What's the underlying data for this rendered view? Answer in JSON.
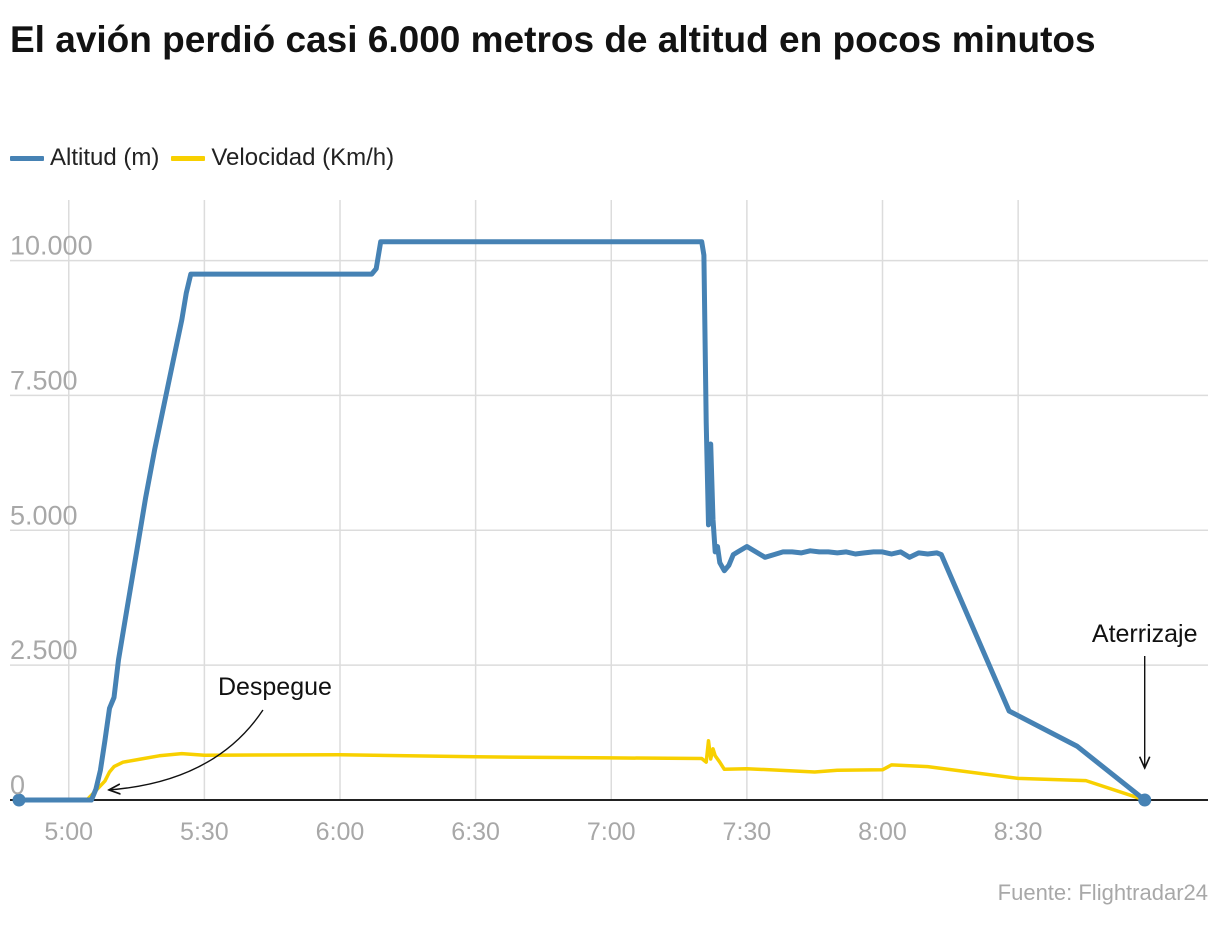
{
  "chart_data": {
    "type": "line",
    "title": "El avión perdió casi 6.000 metros de altitud en pocos minutos",
    "source": "Fuente: Flightradar24",
    "xlabel": "",
    "ylabel": "",
    "x_unit": "hora",
    "xlim": [
      "4:47",
      "9:12"
    ],
    "ylim": [
      0,
      10400
    ],
    "grid": true,
    "legend_position": "top-left",
    "x_ticks": [
      "5:00",
      "5:30",
      "6:00",
      "6:30",
      "7:00",
      "7:30",
      "8:00",
      "8:30"
    ],
    "y_ticks": [
      {
        "value": 0,
        "label": "0"
      },
      {
        "value": 2500,
        "label": "2.500"
      },
      {
        "value": 5000,
        "label": "5.000"
      },
      {
        "value": 7500,
        "label": "7.500"
      },
      {
        "value": 10000,
        "label": "10.000"
      }
    ],
    "series": [
      {
        "name": "Altitud (m)",
        "color": "#4682b4",
        "x": [
          "4:49",
          "5:05",
          "5:06",
          "5:07",
          "5:08",
          "5:09",
          "5:10",
          "5:11",
          "5:13",
          "5:15",
          "5:17",
          "5:19",
          "5:21",
          "5:23",
          "5:25",
          "5:26",
          "5:27",
          "6:07",
          "6:08",
          "6:09",
          "7:20",
          "7:20.5",
          "7:21",
          "7:21.5",
          "7:22",
          "7:22.5",
          "7:23",
          "7:23.5",
          "7:24",
          "7:25",
          "7:26",
          "7:27",
          "7:28",
          "7:30",
          "7:32",
          "7:34",
          "7:36",
          "7:38",
          "7:40",
          "7:42",
          "7:44",
          "7:46",
          "7:48",
          "7:50",
          "7:52",
          "7:54",
          "7:56",
          "7:58",
          "8:00",
          "8:02",
          "8:04",
          "8:06",
          "8:08",
          "8:10",
          "8:12",
          "8:13",
          "8:28",
          "8:43",
          "8:58"
        ],
        "values": [
          0,
          0,
          200,
          550,
          1100,
          1700,
          1900,
          2600,
          3600,
          4600,
          5600,
          6500,
          7300,
          8100,
          8900,
          9400,
          9750,
          9750,
          9850,
          10350,
          10350,
          10100,
          7000,
          5100,
          6600,
          5200,
          4600,
          4700,
          4400,
          4250,
          4350,
          4550,
          4600,
          4700,
          4600,
          4500,
          4550,
          4600,
          4600,
          4580,
          4620,
          4600,
          4600,
          4580,
          4600,
          4560,
          4580,
          4600,
          4600,
          4560,
          4600,
          4500,
          4580,
          4560,
          4580,
          4550,
          1650,
          1000,
          0
        ]
      },
      {
        "name": "Velocidad (Km/h)",
        "color": "#f8d000",
        "x": [
          "5:04",
          "5:08",
          "5:09",
          "5:10",
          "5:12",
          "5:16",
          "5:20",
          "5:25",
          "5:30",
          "6:00",
          "6:30",
          "7:00",
          "7:20",
          "7:21",
          "7:21.5",
          "7:22",
          "7:22.5",
          "7:23",
          "7:24",
          "7:25",
          "7:30",
          "7:40",
          "7:45",
          "7:50",
          "8:00",
          "8:02",
          "8:10",
          "8:30",
          "8:45",
          "8:58"
        ],
        "values": [
          0,
          350,
          520,
          620,
          700,
          760,
          820,
          860,
          830,
          840,
          800,
          780,
          770,
          700,
          1100,
          760,
          950,
          820,
          700,
          570,
          580,
          540,
          520,
          550,
          560,
          650,
          620,
          400,
          360,
          0
        ]
      }
    ],
    "annotations": [
      {
        "label": "Despegue",
        "x": "5:08",
        "y": 150
      },
      {
        "label": "Aterrizaje",
        "x": "8:58",
        "y": 0
      }
    ]
  }
}
